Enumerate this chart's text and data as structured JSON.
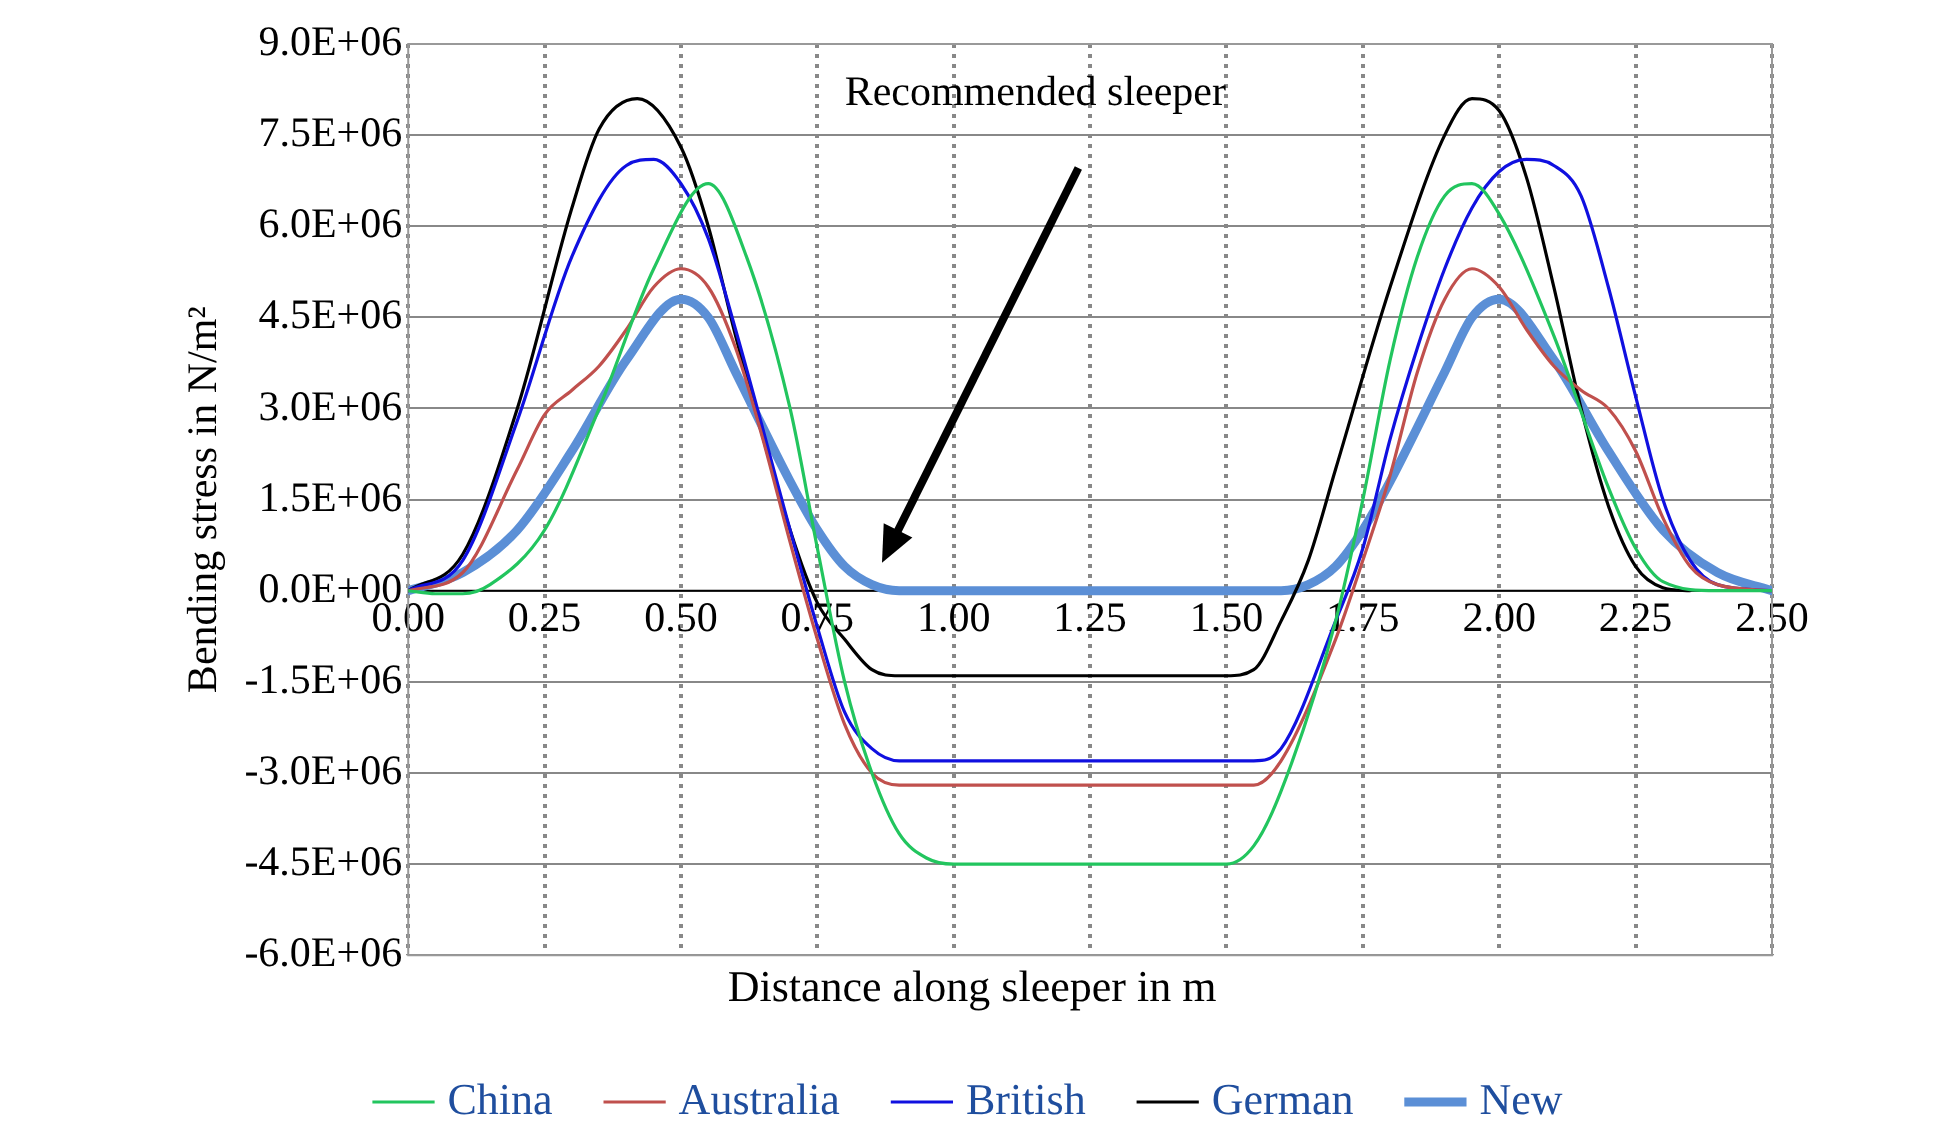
{
  "chart_data": {
    "type": "line",
    "xlabel": "Distance along sleeper in m",
    "ylabel": "Bending stress in N/m²",
    "xlim": [
      0,
      2.5
    ],
    "xticks": [
      {
        "value": 0,
        "label": "0.00"
      },
      {
        "value": 0.25,
        "label": "0.25"
      },
      {
        "value": 0.5,
        "label": "0.50"
      },
      {
        "value": 0.75,
        "label": "0.75"
      },
      {
        "value": 1,
        "label": "1.00"
      },
      {
        "value": 1.25,
        "label": "1.25"
      },
      {
        "value": 1.5,
        "label": "1.50"
      },
      {
        "value": 1.75,
        "label": "1.75"
      },
      {
        "value": 2,
        "label": "2.00"
      },
      {
        "value": 2.25,
        "label": "2.25"
      },
      {
        "value": 2.5,
        "label": "2.50"
      }
    ],
    "ylim": [
      -6000000,
      9000000
    ],
    "yticks": [
      {
        "value": -6000000,
        "label": "-6.0E+06"
      },
      {
        "value": -4500000,
        "label": "-4.5E+06"
      },
      {
        "value": -3000000,
        "label": "-3.0E+06"
      },
      {
        "value": -1500000,
        "label": "-1.5E+06"
      },
      {
        "value": 0,
        "label": "0.0E+00"
      },
      {
        "value": 1500000,
        "label": "1.5E+06"
      },
      {
        "value": 3000000,
        "label": "3.0E+06"
      },
      {
        "value": 4500000,
        "label": "4.5E+06"
      },
      {
        "value": 6000000,
        "label": "6.0E+06"
      },
      {
        "value": 7500000,
        "label": "7.5E+06"
      },
      {
        "value": 9000000,
        "label": "9.0E+06"
      }
    ],
    "grid": true,
    "legend": "bottom",
    "marker": "none",
    "line_style": "solid",
    "annotations": [
      "Recommended sleeper"
    ],
    "series": [
      {
        "name": "China",
        "color": "#22c55e",
        "x": [
          0,
          0.05,
          0.1,
          0.15,
          0.25,
          0.35,
          0.45,
          0.55,
          0.62,
          0.7,
          0.75,
          0.8,
          0.85,
          0.9,
          0.95,
          1,
          1.25,
          1.5,
          1.55,
          1.6,
          1.7,
          1.75,
          1.8,
          1.85,
          1.9,
          1.95,
          2,
          2.1,
          2.2,
          2.25,
          2.3,
          2.4,
          2.5
        ],
        "values": [
          0,
          -50000,
          -50000,
          100000,
          1000000,
          3000000,
          5300000,
          6700000,
          5500000,
          3000000,
          700000,
          -1500000,
          -3000000,
          -4000000,
          -4400000,
          -4500000,
          -4500000,
          -4500000,
          -4200000,
          -3300000,
          -500000,
          1500000,
          3800000,
          5500000,
          6500000,
          6700000,
          6200000,
          4200000,
          1700000,
          700000,
          150000,
          0,
          0
        ]
      },
      {
        "name": "Australia",
        "color": "#c0504d",
        "x": [
          0,
          0.1,
          0.2,
          0.25,
          0.3,
          0.35,
          0.4,
          0.45,
          0.5,
          0.55,
          0.6,
          0.65,
          0.7,
          0.75,
          0.8,
          0.85,
          0.9,
          1,
          1.25,
          1.5,
          1.55,
          1.6,
          1.7,
          1.75,
          1.8,
          1.85,
          1.9,
          1.95,
          2,
          2.05,
          2.1,
          2.15,
          2.2,
          2.25,
          2.3,
          2.35,
          2.4,
          2.5
        ],
        "values": [
          0,
          300000,
          2000000,
          2900000,
          3300000,
          3700000,
          4300000,
          5000000,
          5300000,
          5000000,
          4000000,
          2500000,
          800000,
          -800000,
          -2200000,
          -3000000,
          -3200000,
          -3200000,
          -3200000,
          -3200000,
          -3200000,
          -2800000,
          -800000,
          500000,
          1900000,
          3600000,
          4800000,
          5300000,
          5000000,
          4300000,
          3700000,
          3300000,
          3000000,
          2300000,
          1200000,
          400000,
          100000,
          0
        ]
      },
      {
        "name": "British",
        "color": "#1010e0",
        "x": [
          0,
          0.1,
          0.2,
          0.3,
          0.4,
          0.45,
          0.5,
          0.55,
          0.6,
          0.7,
          0.75,
          0.8,
          0.85,
          0.9,
          1,
          1.25,
          1.5,
          1.55,
          1.6,
          1.7,
          1.75,
          1.8,
          1.85,
          1.9,
          1.95,
          2,
          2.05,
          2.1,
          2.15,
          2.2,
          2.25,
          2.3,
          2.35,
          2.4,
          2.5
        ],
        "values": [
          0,
          500000,
          2800000,
          5500000,
          7000000,
          7100000,
          6700000,
          5800000,
          4300000,
          1000000,
          -600000,
          -2000000,
          -2600000,
          -2800000,
          -2800000,
          -2800000,
          -2800000,
          -2800000,
          -2600000,
          -500000,
          700000,
          2500000,
          4000000,
          5300000,
          6300000,
          6900000,
          7100000,
          7000000,
          6500000,
          5000000,
          3200000,
          1500000,
          500000,
          100000,
          0
        ]
      },
      {
        "name": "German",
        "color": "#000000",
        "x": [
          0,
          0.1,
          0.2,
          0.3,
          0.35,
          0.42,
          0.5,
          0.55,
          0.6,
          0.7,
          0.75,
          0.8,
          0.85,
          0.9,
          1,
          1.25,
          1.5,
          1.55,
          1.6,
          1.65,
          1.7,
          1.8,
          1.9,
          1.95,
          2,
          2.05,
          2.1,
          2.15,
          2.2,
          2.25,
          2.3,
          2.35
        ],
        "values": [
          0,
          600000,
          3000000,
          6300000,
          7600000,
          8100000,
          7300000,
          6000000,
          4200000,
          1000000,
          -200000,
          -800000,
          -1300000,
          -1400000,
          -1400000,
          -1400000,
          -1400000,
          -1300000,
          -500000,
          500000,
          2000000,
          5000000,
          7500000,
          8100000,
          7900000,
          6800000,
          5000000,
          3000000,
          1400000,
          400000,
          50000,
          0
        ]
      },
      {
        "name": "New",
        "color": "#5b8fd6",
        "x": [
          0,
          0.1,
          0.2,
          0.3,
          0.4,
          0.5,
          0.55,
          0.6,
          0.7,
          0.75,
          0.8,
          0.85,
          0.9,
          1,
          1.25,
          1.5,
          1.6,
          1.65,
          1.7,
          1.75,
          1.8,
          1.9,
          1.95,
          2,
          2.1,
          2.2,
          2.3,
          2.4,
          2.5
        ],
        "values": [
          0,
          300000,
          1000000,
          2300000,
          3800000,
          4800000,
          4500000,
          3600000,
          1800000,
          1000000,
          400000,
          100000,
          0,
          0,
          0,
          0,
          0,
          100000,
          400000,
          1000000,
          1800000,
          3600000,
          4500000,
          4800000,
          3800000,
          2300000,
          1000000,
          300000,
          0
        ]
      }
    ]
  }
}
